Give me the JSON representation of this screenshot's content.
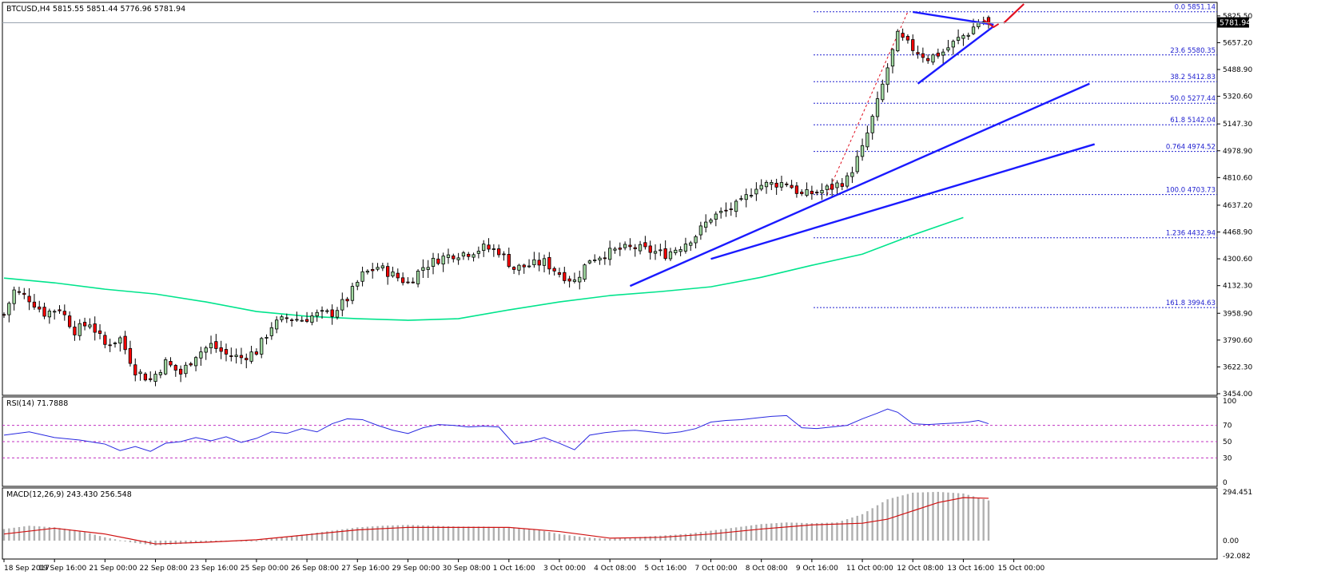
{
  "chart_data": [
    {
      "type": "candlestick",
      "title": "BTCUSD,H4  5815.55 5851.44 5776.96 5781.94",
      "symbol": "BTCUSD",
      "timeframe": "H4",
      "ohlc_header": {
        "open": 5815.55,
        "high": 5851.44,
        "low": 5776.96,
        "close": 5781.94
      },
      "last_price": "5781.94",
      "ylim": [
        3454.0,
        5900.0
      ],
      "y_ticks": [
        "5825.50",
        "5657.20",
        "5488.90",
        "5320.60",
        "5147.30",
        "4978.90",
        "4810.60",
        "4637.20",
        "4468.90",
        "4300.60",
        "4132.30",
        "3958.90",
        "3790.60",
        "3622.30",
        "3454.00"
      ],
      "x_ticks": [
        "18 Sep 2017",
        "19 Sep 16:00",
        "21 Sep 00:00",
        "22 Sep 08:00",
        "23 Sep 16:00",
        "25 Sep 00:00",
        "26 Sep 08:00",
        "27 Sep 16:00",
        "29 Sep 00:00",
        "30 Sep 08:00",
        "1 Oct 16:00",
        "3 Oct 00:00",
        "4 Oct 08:00",
        "5 Oct 16:00",
        "7 Oct 00:00",
        "8 Oct 08:00",
        "9 Oct 16:00",
        "11 Oct 00:00",
        "12 Oct 08:00",
        "13 Oct 16:00",
        "15 Oct 00:00"
      ],
      "close_path": [
        [
          0,
          3950
        ],
        [
          2,
          4100
        ],
        [
          5,
          4050
        ],
        [
          8,
          3960
        ],
        [
          11,
          3990
        ],
        [
          14,
          3850
        ],
        [
          17,
          3900
        ],
        [
          20,
          3760
        ],
        [
          23,
          3800
        ],
        [
          26,
          3600
        ],
        [
          29,
          3540
        ],
        [
          32,
          3650
        ],
        [
          35,
          3580
        ],
        [
          38,
          3700
        ],
        [
          41,
          3760
        ],
        [
          44,
          3700
        ],
        [
          47,
          3680
        ],
        [
          50,
          3720
        ],
        [
          53,
          3880
        ],
        [
          56,
          3930
        ],
        [
          59,
          3920
        ],
        [
          62,
          3950
        ],
        [
          65,
          3960
        ],
        [
          68,
          4050
        ],
        [
          71,
          4200
        ],
        [
          74,
          4250
        ],
        [
          77,
          4200
        ],
        [
          80,
          4150
        ],
        [
          83,
          4250
        ],
        [
          86,
          4300
        ],
        [
          89,
          4330
        ],
        [
          92,
          4340
        ],
        [
          95,
          4370
        ],
        [
          98,
          4350
        ],
        [
          101,
          4240
        ],
        [
          104,
          4260
        ],
        [
          107,
          4280
        ],
        [
          110,
          4210
        ],
        [
          113,
          4160
        ],
        [
          116,
          4300
        ],
        [
          119,
          4330
        ],
        [
          122,
          4360
        ],
        [
          125,
          4370
        ],
        [
          128,
          4350
        ],
        [
          131,
          4330
        ],
        [
          134,
          4380
        ],
        [
          137,
          4450
        ],
        [
          140,
          4560
        ],
        [
          143,
          4600
        ],
        [
          146,
          4650
        ],
        [
          149,
          4760
        ],
        [
          152,
          4770
        ],
        [
          155,
          4780
        ],
        [
          158,
          4700
        ],
        [
          161,
          4720
        ],
        [
          164,
          4750
        ],
        [
          167,
          4800
        ],
        [
          170,
          4990
        ],
        [
          173,
          5280
        ],
        [
          175,
          5500
        ],
        [
          177,
          5700
        ],
        [
          180,
          5620
        ],
        [
          183,
          5560
        ],
        [
          186,
          5600
        ],
        [
          189,
          5680
        ],
        [
          191,
          5720
        ],
        [
          193,
          5790
        ],
        [
          195,
          5782
        ]
      ],
      "moving_average": {
        "color": "#00e48c",
        "path": [
          [
            0,
            4180
          ],
          [
            10,
            4150
          ],
          [
            20,
            4110
          ],
          [
            30,
            4080
          ],
          [
            40,
            4030
          ],
          [
            50,
            3970
          ],
          [
            60,
            3940
          ],
          [
            70,
            3925
          ],
          [
            80,
            3915
          ],
          [
            90,
            3925
          ],
          [
            100,
            3980
          ],
          [
            110,
            4030
          ],
          [
            120,
            4070
          ],
          [
            130,
            4095
          ],
          [
            140,
            4125
          ],
          [
            150,
            4185
          ],
          [
            160,
            4260
          ],
          [
            170,
            4330
          ],
          [
            180,
            4450
          ],
          [
            190,
            4560
          ]
        ]
      },
      "fibonacci": {
        "color": "#2020d0",
        "levels": [
          {
            "label": "0.0  5851.14",
            "value": 5851.14
          },
          {
            "label": "23.6  5580.35",
            "value": 5580.35
          },
          {
            "label": "38.2  5412.83",
            "value": 5412.83
          },
          {
            "label": "50.0  5277.44",
            "value": 5277.44
          },
          {
            "label": "61.8  5142.04",
            "value": 5142.04
          },
          {
            "label": "0.764  4974.52",
            "value": 4974.52
          },
          {
            "label": "100.0  4703.73",
            "value": 4703.73
          },
          {
            "label": "1.236  4432.94",
            "value": 4432.94
          },
          {
            "label": "161.8  3994.63",
            "value": 3994.63
          }
        ]
      },
      "trend_lines": [
        {
          "name": "support-1",
          "from": [
            124,
            4130
          ],
          "to": [
            215,
            5400
          ]
        },
        {
          "name": "support-2",
          "from": [
            140,
            4300
          ],
          "to": [
            216,
            5020
          ]
        },
        {
          "name": "triangle-upper",
          "from": [
            180,
            5850
          ],
          "to": [
            196,
            5770
          ]
        },
        {
          "name": "triangle-lower",
          "from": [
            181,
            5400
          ],
          "to": [
            196,
            5760
          ]
        }
      ],
      "projection_arrow": {
        "color": "#e01020",
        "from": [
          198,
          5780
        ],
        "to": [
          202,
          5900
        ]
      },
      "colors": {
        "bull": "#a0d8a0",
        "bear": "#ff0000",
        "line": "#1a1aff",
        "grid_fib": "#2020d0"
      }
    },
    {
      "type": "line",
      "title": "RSI(14) 71.7888",
      "ylim": [
        0,
        100
      ],
      "y_ticks": [
        "100",
        "70",
        "50",
        "30",
        "0"
      ],
      "levels": [
        70,
        50,
        30
      ],
      "series": [
        {
          "name": "RSI(14)",
          "color": "#2828e0",
          "points": [
            [
              0,
              58
            ],
            [
              5,
              62
            ],
            [
              10,
              55
            ],
            [
              15,
              52
            ],
            [
              20,
              47
            ],
            [
              23,
              39
            ],
            [
              26,
              44
            ],
            [
              29,
              38
            ],
            [
              32,
              48
            ],
            [
              35,
              50
            ],
            [
              38,
              55
            ],
            [
              41,
              51
            ],
            [
              44,
              56
            ],
            [
              47,
              49
            ],
            [
              50,
              54
            ],
            [
              53,
              62
            ],
            [
              56,
              60
            ],
            [
              59,
              66
            ],
            [
              62,
              62
            ],
            [
              65,
              72
            ],
            [
              68,
              78
            ],
            [
              71,
              77
            ],
            [
              74,
              70
            ],
            [
              77,
              64
            ],
            [
              80,
              60
            ],
            [
              83,
              67
            ],
            [
              86,
              71
            ],
            [
              89,
              70
            ],
            [
              92,
              68
            ],
            [
              95,
              69
            ],
            [
              98,
              68
            ],
            [
              101,
              47
            ],
            [
              104,
              50
            ],
            [
              107,
              55
            ],
            [
              110,
              48
            ],
            [
              113,
              40
            ],
            [
              116,
              58
            ],
            [
              119,
              61
            ],
            [
              122,
              63
            ],
            [
              125,
              64
            ],
            [
              128,
              62
            ],
            [
              131,
              60
            ],
            [
              134,
              62
            ],
            [
              137,
              66
            ],
            [
              140,
              74
            ],
            [
              143,
              76
            ],
            [
              146,
              77
            ],
            [
              149,
              79
            ],
            [
              152,
              81
            ],
            [
              155,
              82
            ],
            [
              158,
              67
            ],
            [
              161,
              66
            ],
            [
              164,
              68
            ],
            [
              167,
              70
            ],
            [
              170,
              78
            ],
            [
              173,
              85
            ],
            [
              175,
              90
            ],
            [
              177,
              86
            ],
            [
              180,
              72
            ],
            [
              183,
              71
            ],
            [
              186,
              72
            ],
            [
              189,
              73
            ],
            [
              191,
              74
            ],
            [
              193,
              76
            ],
            [
              195,
              72
            ]
          ]
        }
      ]
    },
    {
      "type": "bar+line",
      "title": "MACD(12,26,9) 243.430 256.548",
      "ylim": [
        -92.082,
        294.451
      ],
      "y_ticks": [
        "294.451",
        "0.00",
        "-92.082"
      ],
      "histogram": {
        "name": "MACD(12,26,9)",
        "color": "#b0b0b0",
        "points": [
          [
            0,
            70
          ],
          [
            5,
            90
          ],
          [
            10,
            80
          ],
          [
            15,
            60
          ],
          [
            20,
            20
          ],
          [
            25,
            -10
          ],
          [
            30,
            -30
          ],
          [
            35,
            -20
          ],
          [
            40,
            -10
          ],
          [
            45,
            -5
          ],
          [
            50,
            0
          ],
          [
            55,
            20
          ],
          [
            60,
            40
          ],
          [
            65,
            60
          ],
          [
            70,
            80
          ],
          [
            75,
            90
          ],
          [
            80,
            95
          ],
          [
            85,
            90
          ],
          [
            90,
            85
          ],
          [
            95,
            85
          ],
          [
            100,
            80
          ],
          [
            105,
            70
          ],
          [
            110,
            40
          ],
          [
            115,
            20
          ],
          [
            120,
            10
          ],
          [
            125,
            20
          ],
          [
            130,
            30
          ],
          [
            135,
            40
          ],
          [
            140,
            60
          ],
          [
            145,
            80
          ],
          [
            150,
            100
          ],
          [
            155,
            110
          ],
          [
            160,
            105
          ],
          [
            165,
            110
          ],
          [
            170,
            160
          ],
          [
            175,
            250
          ],
          [
            180,
            290
          ],
          [
            185,
            295
          ],
          [
            190,
            285
          ],
          [
            195,
            243
          ]
        ]
      },
      "signal": {
        "name": "signal",
        "color": "#d01010",
        "points": [
          [
            0,
            40
          ],
          [
            10,
            75
          ],
          [
            20,
            40
          ],
          [
            25,
            10
          ],
          [
            30,
            -20
          ],
          [
            35,
            -15
          ],
          [
            40,
            -10
          ],
          [
            50,
            5
          ],
          [
            60,
            35
          ],
          [
            70,
            65
          ],
          [
            80,
            80
          ],
          [
            90,
            80
          ],
          [
            100,
            80
          ],
          [
            110,
            55
          ],
          [
            120,
            15
          ],
          [
            130,
            20
          ],
          [
            140,
            40
          ],
          [
            150,
            70
          ],
          [
            160,
            95
          ],
          [
            170,
            105
          ],
          [
            175,
            130
          ],
          [
            180,
            180
          ],
          [
            185,
            230
          ],
          [
            190,
            260
          ],
          [
            195,
            256
          ]
        ]
      }
    }
  ]
}
